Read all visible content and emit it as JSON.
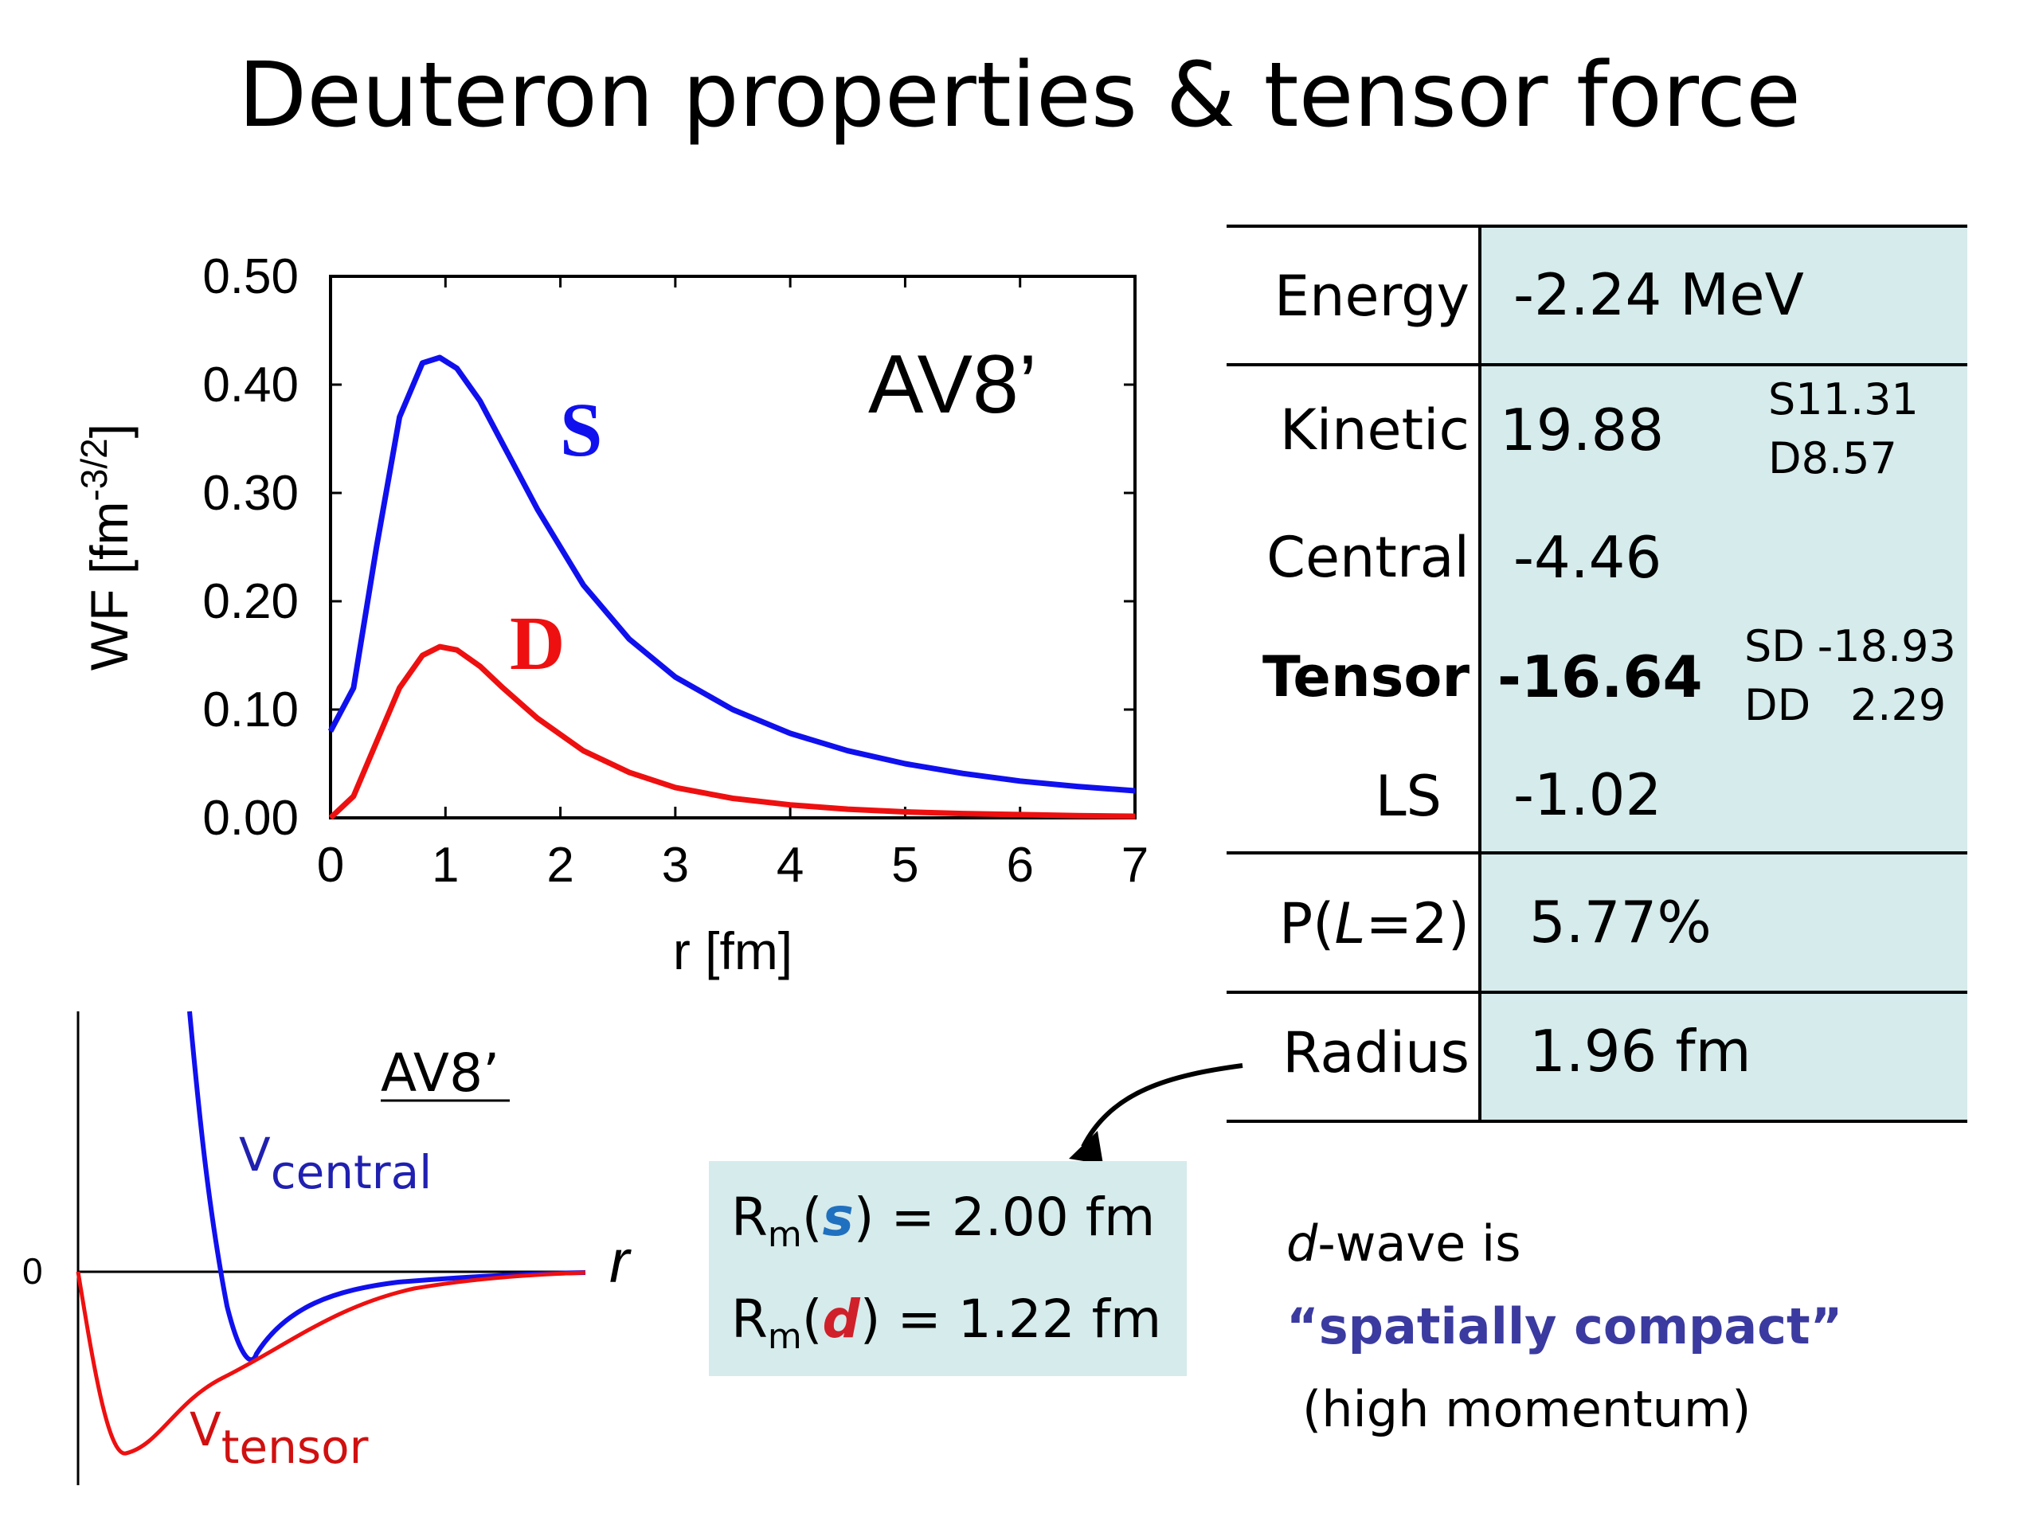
{
  "title": "Deuteron properties & tensor force",
  "chart_data": [
    {
      "type": "line",
      "title": "",
      "annotation": "AV8’",
      "xlabel": "r [fm]",
      "ylabel": "WF [fm",
      "ylabel_sup": "-3/2",
      "ylabel_end": "]",
      "xlim": [
        0,
        7
      ],
      "ylim": [
        0,
        0.5
      ],
      "x_ticks": [
        "0",
        "1",
        "2",
        "3",
        "4",
        "5",
        "6",
        "7"
      ],
      "y_ticks": [
        "0.00",
        "0.10",
        "0.20",
        "0.30",
        "0.40",
        "0.50"
      ],
      "series": [
        {
          "name": "S",
          "color": "#1010ee",
          "x": [
            0,
            0.2,
            0.4,
            0.6,
            0.8,
            0.95,
            1.1,
            1.3,
            1.5,
            1.8,
            2.2,
            2.6,
            3.0,
            3.5,
            4.0,
            4.5,
            5.0,
            5.5,
            6.0,
            6.5,
            7.0
          ],
          "y": [
            0.08,
            0.12,
            0.25,
            0.37,
            0.42,
            0.425,
            0.415,
            0.385,
            0.345,
            0.285,
            0.215,
            0.165,
            0.13,
            0.1,
            0.078,
            0.062,
            0.05,
            0.041,
            0.034,
            0.029,
            0.025
          ]
        },
        {
          "name": "D",
          "color": "#ee1010",
          "x": [
            0,
            0.2,
            0.4,
            0.6,
            0.8,
            0.95,
            1.1,
            1.3,
            1.5,
            1.8,
            2.2,
            2.6,
            3.0,
            3.5,
            4.0,
            4.5,
            5.0,
            5.5,
            6.0,
            6.5,
            7.0
          ],
          "y": [
            0.0,
            0.02,
            0.07,
            0.12,
            0.15,
            0.158,
            0.155,
            0.14,
            0.12,
            0.092,
            0.062,
            0.042,
            0.028,
            0.018,
            0.012,
            0.008,
            0.0055,
            0.004,
            0.003,
            0.002,
            0.0015
          ]
        }
      ]
    },
    {
      "type": "line",
      "title": "AV8’",
      "xlabel": "r",
      "y_zero_label": "0",
      "series": [
        {
          "name": "V",
          "name_sub": "central",
          "color": "#1010ee"
        },
        {
          "name": "V",
          "name_sub": "tensor",
          "color": "#ee1010"
        }
      ]
    }
  ],
  "table": {
    "energy": {
      "label": "Energy",
      "value": "-2.24 MeV"
    },
    "kinetic": {
      "label": "Kinetic",
      "value": "19.88",
      "sub": [
        {
          "k": "S",
          "v": "11.31"
        },
        {
          "k": "D",
          "v": "8.57"
        }
      ]
    },
    "central": {
      "label": "Central",
      "value": "-4.46"
    },
    "tensor": {
      "label": "Tensor",
      "value": "-16.64",
      "sub": [
        {
          "k": "SD",
          "v": "-18.93"
        },
        {
          "k": "DD",
          "v": "2.29"
        }
      ]
    },
    "ls": {
      "label": "LS",
      "value": "-1.02"
    },
    "pl2": {
      "label_pre": "P(",
      "label_var": "L",
      "label_post": "=2)",
      "value": "5.77%"
    },
    "radius": {
      "label": "Radius",
      "value": "1.96 fm"
    }
  },
  "radius_box": {
    "rm": "R",
    "rm_sub": "m",
    "s_sym": "s",
    "s_value": ") = 2.00 fm",
    "d_sym": "d",
    "d_value": ") = 1.22 fm",
    "open": "("
  },
  "note": {
    "line1_var": "d",
    "line1_rest": "-wave is",
    "line2": "“spatially compact”",
    "line3": "(high momentum)"
  }
}
